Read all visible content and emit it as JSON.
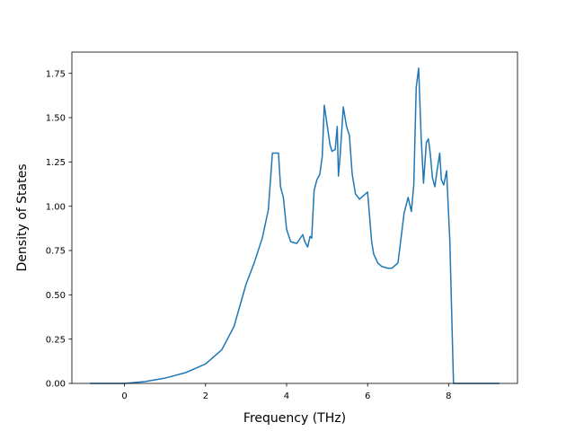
{
  "chart_data": {
    "type": "line",
    "title": "",
    "xlabel": "Frequency (THz)",
    "ylabel": "Density of States",
    "xlim": [
      -1.3,
      9.7
    ],
    "ylim": [
      0.0,
      1.87
    ],
    "xticks": [
      0,
      2,
      4,
      6,
      8
    ],
    "xtick_labels": [
      "0",
      "2",
      "4",
      "6",
      "8"
    ],
    "yticks": [
      0.0,
      0.25,
      0.5,
      0.75,
      1.0,
      1.25,
      1.5,
      1.75
    ],
    "ytick_labels": [
      "0.00",
      "0.25",
      "0.50",
      "0.75",
      "1.00",
      "1.25",
      "1.50",
      "1.75"
    ],
    "grid": false,
    "series": [
      {
        "color": "#1f77b4",
        "x": [
          -0.85,
          0.0,
          0.5,
          1.0,
          1.5,
          2.0,
          2.4,
          2.7,
          3.0,
          3.2,
          3.4,
          3.55,
          3.65,
          3.8,
          3.85,
          3.92,
          4.0,
          4.1,
          4.25,
          4.4,
          4.45,
          4.52,
          4.58,
          4.62,
          4.68,
          4.75,
          4.82,
          4.88,
          4.93,
          5.0,
          5.07,
          5.12,
          5.2,
          5.25,
          5.28,
          5.32,
          5.4,
          5.48,
          5.55,
          5.62,
          5.7,
          5.8,
          5.9,
          6.0,
          6.1,
          6.15,
          6.25,
          6.35,
          6.5,
          6.6,
          6.75,
          6.9,
          7.0,
          7.08,
          7.14,
          7.2,
          7.26,
          7.32,
          7.38,
          7.45,
          7.5,
          7.55,
          7.6,
          7.66,
          7.72,
          7.78,
          7.82,
          7.88,
          7.95,
          8.03,
          8.12,
          8.18,
          8.22,
          8.26,
          8.32,
          8.38,
          8.45,
          8.5,
          9.25
        ],
        "y": [
          0.0,
          0.0,
          0.01,
          0.03,
          0.06,
          0.11,
          0.19,
          0.32,
          0.56,
          0.68,
          0.82,
          0.98,
          1.3,
          1.3,
          1.11,
          1.05,
          0.87,
          0.8,
          0.79,
          0.84,
          0.8,
          0.77,
          0.83,
          0.82,
          1.09,
          1.15,
          1.18,
          1.28,
          1.57,
          1.46,
          1.35,
          1.31,
          1.32,
          1.45,
          1.17,
          1.28,
          1.56,
          1.45,
          1.4,
          1.18,
          1.07,
          1.04,
          1.06,
          1.08,
          0.8,
          0.73,
          0.68,
          0.66,
          0.65,
          0.65,
          0.68,
          0.96,
          1.05,
          0.97,
          1.12,
          1.67,
          1.78,
          1.4,
          1.13,
          1.36,
          1.38,
          1.29,
          1.16,
          1.11,
          1.21,
          1.3,
          1.15,
          1.12,
          1.2,
          0.8,
          0.0,
          0.0,
          0.0,
          0.0,
          0.0,
          0.0,
          0.0,
          0.0,
          0.0
        ]
      }
    ]
  }
}
